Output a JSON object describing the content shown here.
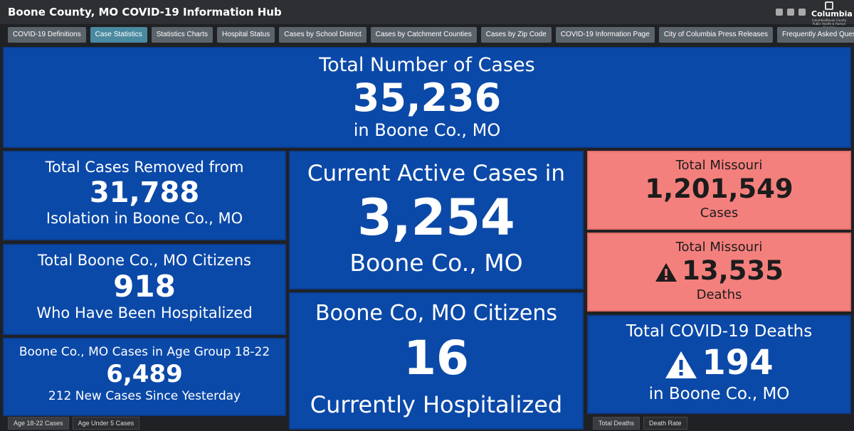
{
  "header": {
    "title": "Boone County, MO COVID-19 Information Hub",
    "social_icons": [
      "facebook-icon",
      "twitter-icon",
      "link-icon"
    ],
    "logo": {
      "prefix": "City of",
      "name": "Columbia",
      "subtitle": "Columbia/Boone County Public Health & Human Services"
    }
  },
  "tabs": [
    {
      "label": "COVID-19 Definitions",
      "active": false
    },
    {
      "label": "Case Statistics",
      "active": true
    },
    {
      "label": "Statistics Charts",
      "active": false
    },
    {
      "label": "Hospital Status",
      "active": false
    },
    {
      "label": "Cases by School District",
      "active": false
    },
    {
      "label": "Cases by Catchment Counties",
      "active": false
    },
    {
      "label": "Cases by Zip Code",
      "active": false
    },
    {
      "label": "COVID-19 Information Page",
      "active": false
    },
    {
      "label": "City of Columbia Press Releases",
      "active": false
    },
    {
      "label": "Frequently Asked Questions",
      "active": false
    }
  ],
  "cards": {
    "total_cases": {
      "top": "Total Number of Cases",
      "value": "35,236",
      "bottom": "in Boone Co., MO"
    },
    "removed": {
      "top": "Total Cases Removed from",
      "value": "31,788",
      "bottom": "Isolation in Boone Co., MO"
    },
    "hospitalized_total": {
      "top": "Total Boone Co., MO Citizens",
      "value": "918",
      "bottom": "Who Have Been Hospitalized"
    },
    "age_group": {
      "top": "Boone Co., MO Cases in Age Group 18-22",
      "value": "6,489",
      "bottom": "212 New Cases Since Yesterday"
    },
    "active": {
      "top": "Current Active Cases in",
      "value": "3,254",
      "bottom": "Boone Co., MO"
    },
    "current_hospitalized": {
      "top": "Boone Co, MO Citizens",
      "value": "16",
      "bottom": "Currently Hospitalized"
    },
    "missouri_cases": {
      "top": "Total Missouri",
      "value": "1,201,549",
      "bottom": "Cases"
    },
    "missouri_deaths": {
      "top": "Total Missouri",
      "value": "13,535",
      "bottom": "Deaths",
      "icon": "warning-icon"
    },
    "boone_deaths": {
      "top": "Total COVID-19 Deaths",
      "value": "194",
      "bottom": "in Boone Co., MO",
      "icon": "warning-icon"
    }
  },
  "subtabs_left": [
    {
      "label": "Age 18-22 Cases",
      "active": true
    },
    {
      "label": "Age Under 5 Cases",
      "active": false
    }
  ],
  "subtabs_right": [
    {
      "label": "Total Deaths",
      "active": true
    },
    {
      "label": "Death Rate",
      "active": false
    }
  ],
  "colors": {
    "card_blue": "#0b49a8",
    "card_red": "#f4807d",
    "header_bg": "#2d2f33",
    "tab_bg": "#5b636b",
    "tab_active_bg": "#4a8aa0"
  }
}
